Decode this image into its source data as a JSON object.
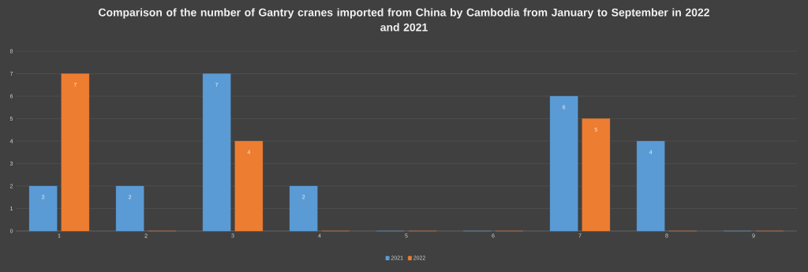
{
  "chart_data": {
    "type": "bar",
    "title": "Comparison of the number of Gantry cranes imported from China by Cambodia from January to September in 2022 and 2021",
    "categories": [
      "1",
      "2",
      "3",
      "4",
      "5",
      "6",
      "7",
      "8",
      "9"
    ],
    "series": [
      {
        "name": "2021",
        "color": "#5b9bd5",
        "values": [
          2,
          2,
          7,
          2,
          0,
          0,
          6,
          4,
          0
        ],
        "value_labels": [
          "2",
          "2",
          "7",
          "2",
          null,
          null,
          "6",
          "4",
          null
        ]
      },
      {
        "name": "2022",
        "color": "#ed7d31",
        "values": [
          7,
          0,
          4,
          0,
          0,
          0,
          5,
          0,
          0
        ],
        "value_labels": [
          "7",
          null,
          "4",
          null,
          null,
          null,
          "5",
          null,
          null
        ]
      }
    ],
    "ylim": [
      0,
      8
    ],
    "yticks": [
      0,
      1,
      2,
      3,
      4,
      5,
      6,
      7,
      8
    ],
    "grid": "y",
    "legend": "bottom"
  }
}
